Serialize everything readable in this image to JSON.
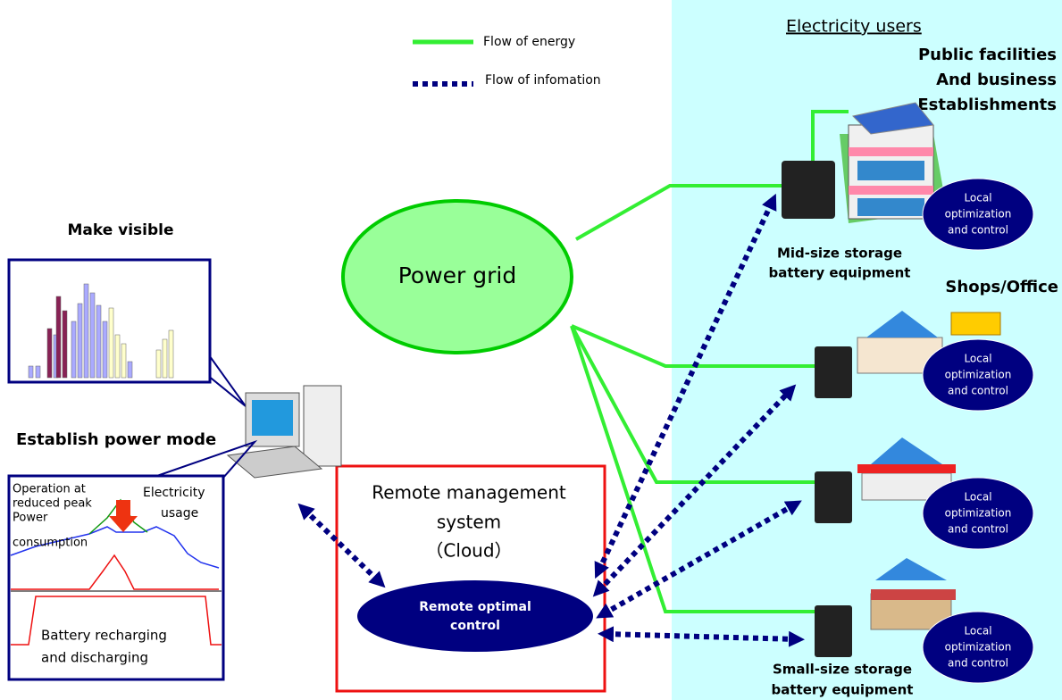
{
  "legend": {
    "energy": "Flow of energy",
    "information": "Flow of infomation"
  },
  "users": {
    "title": "Electricity users",
    "public_facilities": [
      "Public facilities",
      "And business",
      "Establishments"
    ],
    "mid_size": [
      "Mid-size storage",
      "battery equipment"
    ],
    "shops": "Shops/Office",
    "small_size": [
      "Small-size storage",
      "battery equipment"
    ],
    "local_control": [
      [
        "Local",
        "optimization",
        "and control"
      ],
      [
        "Local",
        "optimization",
        "and control"
      ],
      [
        "Local",
        "optimization",
        "and control"
      ],
      [
        "Local",
        "optimization",
        "and control"
      ]
    ]
  },
  "grid": {
    "label": "Power grid"
  },
  "cloud": {
    "title": [
      "Remote management",
      "system",
      "（Cloud）"
    ],
    "control": [
      "Remote optimal",
      "control"
    ]
  },
  "left": {
    "make_visible": "Make  visible",
    "power_mode": "Establish power mode",
    "peak": [
      "Operation at",
      "reduced peak",
      "Power",
      "consumption"
    ],
    "usage": [
      "Electricity",
      "usage"
    ],
    "battery": [
      "Battery recharging",
      "and discharging"
    ]
  }
}
